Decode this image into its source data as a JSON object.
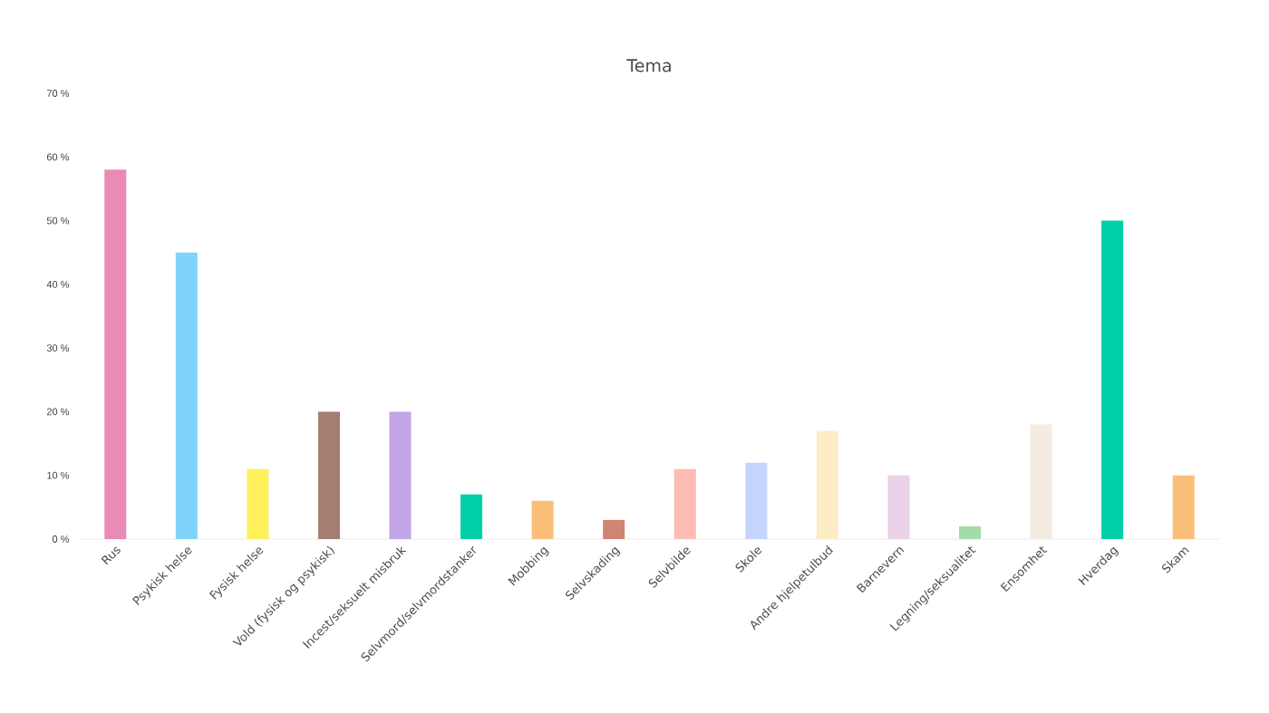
{
  "chart_data": {
    "type": "bar",
    "title": "Tema",
    "categories": [
      "Rus",
      "Psykisk helse",
      "Fysisk helse",
      "Vold (fysisk og psykisk)",
      "Incest/seksuelt misbruk",
      "Selvmord/selvmordstanker",
      "Mobbing",
      "Selvskading",
      "Selvbilde",
      "Skole",
      "Andre hjelpetulbud",
      "Barnevern",
      "Legning/seksualitet",
      "Ensomhet",
      "Hverdag",
      "Skam"
    ],
    "values": [
      58,
      45,
      11,
      20,
      20,
      7,
      6,
      3,
      11,
      12,
      17,
      10,
      2,
      18,
      50,
      10
    ],
    "colors": [
      "#e98bb5",
      "#7fd3fb",
      "#fdf05a",
      "#a47f71",
      "#c3a6e6",
      "#00cfaa",
      "#f9bf78",
      "#d08472",
      "#fdbcb4",
      "#c4d4fd",
      "#fdedc4",
      "#ead3e8",
      "#a4dca9",
      "#f4ebe1",
      "#00cfaa",
      "#f9bf78"
    ],
    "ylim": [
      0,
      70
    ],
    "yticks": [
      {
        "value": 0,
        "label": "0 %"
      },
      {
        "value": 10,
        "label": "10 %"
      },
      {
        "value": 20,
        "label": "20 %"
      },
      {
        "value": 30,
        "label": "30 %"
      },
      {
        "value": 40,
        "label": "40 %"
      },
      {
        "value": 50,
        "label": "50 %"
      },
      {
        "value": 60,
        "label": "60 %"
      },
      {
        "value": 70,
        "label": "70 %"
      }
    ],
    "grid": false
  }
}
